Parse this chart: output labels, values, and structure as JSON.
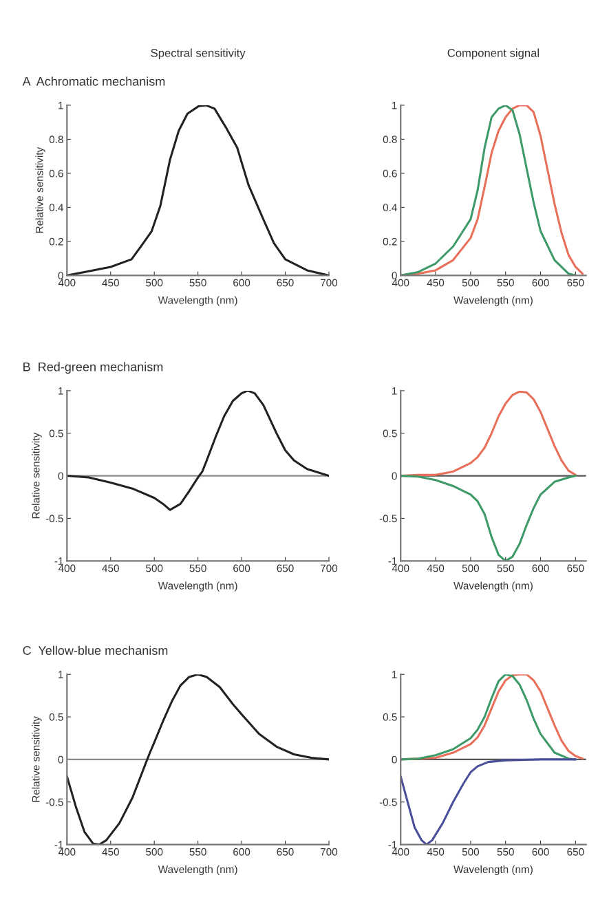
{
  "chart_data": [
    {
      "type": "line",
      "title": "A  Achromatic mechanism",
      "annotations": [
        "Spectral sensitivity"
      ],
      "xlabel": "Wavelength (nm)",
      "ylabel": "Relative sensitivity",
      "xlim": [
        400,
        700
      ],
      "xticks": [
        400,
        450,
        500,
        550,
        600,
        650,
        700
      ],
      "ylim": [
        0,
        1
      ],
      "yticks": [
        0,
        0.2,
        0.4,
        0.6,
        0.8,
        1
      ],
      "series": [
        {
          "color": "#222222",
          "x": [
            400,
            425,
            450,
            474,
            486,
            497,
            507,
            518,
            528,
            538,
            551,
            559,
            569,
            582,
            595,
            608,
            624,
            637,
            650,
            675,
            700
          ],
          "values": [
            0,
            0.025,
            0.05,
            0.095,
            0.18,
            0.26,
            0.41,
            0.68,
            0.85,
            0.95,
            0.995,
            1.0,
            0.98,
            0.87,
            0.75,
            0.53,
            0.34,
            0.19,
            0.095,
            0.03,
            0
          ]
        }
      ]
    },
    {
      "type": "line",
      "annotations": [
        "Component signal"
      ],
      "xlabel": "Wavelength (nm)",
      "xlim": [
        400,
        665
      ],
      "xticks": [
        400,
        450,
        500,
        550,
        600,
        650
      ],
      "ylim": [
        0,
        1
      ],
      "yticks": [
        0,
        0.2,
        0.4,
        0.6,
        0.8,
        1
      ],
      "series": [
        {
          "color": "#e8705a",
          "x": [
            400,
            425,
            450,
            475,
            500,
            510,
            520,
            530,
            540,
            550,
            560,
            570,
            580,
            590,
            600,
            610,
            620,
            630,
            640,
            650,
            660
          ],
          "values": [
            0,
            0.01,
            0.03,
            0.09,
            0.22,
            0.33,
            0.52,
            0.72,
            0.85,
            0.93,
            0.98,
            1.0,
            1.0,
            0.96,
            0.82,
            0.62,
            0.42,
            0.25,
            0.12,
            0.05,
            0.01
          ]
        },
        {
          "color": "#3f9a6a",
          "x": [
            400,
            425,
            450,
            475,
            500,
            510,
            520,
            530,
            540,
            550,
            560,
            570,
            580,
            590,
            600,
            620,
            640,
            650
          ],
          "values": [
            0,
            0.02,
            0.07,
            0.17,
            0.33,
            0.5,
            0.75,
            0.93,
            0.98,
            1.0,
            0.97,
            0.83,
            0.63,
            0.43,
            0.26,
            0.09,
            0.01,
            0
          ]
        }
      ]
    },
    {
      "type": "line",
      "title": "B  Red-green mechanism",
      "xlabel": "Wavelength (nm)",
      "ylabel": "Relative sensitivity",
      "xlim": [
        400,
        700
      ],
      "xticks": [
        400,
        450,
        500,
        550,
        600,
        650,
        700
      ],
      "ylim": [
        -1,
        1
      ],
      "yticks": [
        -1,
        -0.5,
        0,
        0.5,
        1
      ],
      "ref_lines": [
        {
          "axis": "y",
          "value": 0,
          "color": "#8a8a8a"
        }
      ],
      "series": [
        {
          "color": "#222222",
          "x": [
            400,
            425,
            450,
            475,
            500,
            510,
            518,
            530,
            540,
            550,
            555,
            560,
            570,
            580,
            590,
            600,
            607,
            615,
            625,
            640,
            650,
            660,
            675,
            700
          ],
          "values": [
            0,
            -0.02,
            -0.08,
            -0.15,
            -0.26,
            -0.33,
            -0.4,
            -0.33,
            -0.18,
            -0.02,
            0.05,
            0.18,
            0.45,
            0.7,
            0.88,
            0.97,
            1.0,
            0.97,
            0.83,
            0.5,
            0.3,
            0.18,
            0.08,
            0
          ]
        }
      ]
    },
    {
      "type": "line",
      "xlabel": "Wavelength (nm)",
      "xlim": [
        400,
        665
      ],
      "xticks": [
        400,
        450,
        500,
        550,
        600,
        650
      ],
      "ylim": [
        -1,
        1
      ],
      "yticks": [
        -1,
        -0.5,
        0,
        0.5,
        1
      ],
      "ref_lines": [
        {
          "axis": "y",
          "value": 0,
          "color": "#555555"
        }
      ],
      "series": [
        {
          "color": "#e8705a",
          "x": [
            400,
            425,
            450,
            475,
            500,
            510,
            520,
            530,
            540,
            550,
            560,
            570,
            580,
            590,
            600,
            610,
            620,
            630,
            640,
            650
          ],
          "values": [
            0,
            0.01,
            0.01,
            0.05,
            0.15,
            0.22,
            0.33,
            0.5,
            0.7,
            0.85,
            0.95,
            0.99,
            0.98,
            0.9,
            0.75,
            0.55,
            0.35,
            0.18,
            0.06,
            0.01
          ]
        },
        {
          "color": "#3f9a6a",
          "x": [
            400,
            425,
            450,
            475,
            500,
            510,
            520,
            530,
            540,
            550,
            560,
            570,
            580,
            590,
            600,
            620,
            640,
            650
          ],
          "values": [
            0,
            -0.01,
            -0.05,
            -0.12,
            -0.22,
            -0.3,
            -0.45,
            -0.72,
            -0.93,
            -1.0,
            -0.95,
            -0.8,
            -0.58,
            -0.38,
            -0.22,
            -0.07,
            -0.02,
            0
          ]
        }
      ]
    },
    {
      "type": "line",
      "title": "C  Yellow-blue mechanism",
      "xlabel": "Wavelength (nm)",
      "ylabel": "Relative sensitivity",
      "xlim": [
        400,
        700
      ],
      "xticks": [
        400,
        450,
        500,
        550,
        600,
        650,
        700
      ],
      "ylim": [
        -1,
        1
      ],
      "yticks": [
        -1,
        -0.5,
        0,
        0.5,
        1
      ],
      "ref_lines": [
        {
          "axis": "y",
          "value": 0,
          "color": "#8a8a8a"
        }
      ],
      "series": [
        {
          "color": "#222222",
          "x": [
            400,
            410,
            420,
            430,
            437,
            445,
            460,
            475,
            490,
            495,
            500,
            510,
            520,
            530,
            540,
            550,
            560,
            575,
            590,
            600,
            620,
            640,
            660,
            680,
            700
          ],
          "values": [
            -0.2,
            -0.55,
            -0.85,
            -0.99,
            -1.0,
            -0.95,
            -0.75,
            -0.45,
            -0.05,
            0.08,
            0.2,
            0.45,
            0.68,
            0.87,
            0.97,
            1.0,
            0.97,
            0.85,
            0.65,
            0.53,
            0.3,
            0.15,
            0.06,
            0.02,
            0
          ]
        }
      ]
    },
    {
      "type": "line",
      "xlabel": "Wavelength (nm)",
      "xlim": [
        400,
        665
      ],
      "xticks": [
        400,
        450,
        500,
        550,
        600,
        650
      ],
      "ylim": [
        -1,
        1
      ],
      "yticks": [
        -1,
        -0.5,
        0,
        0.5,
        1
      ],
      "ref_lines": [
        {
          "axis": "y",
          "value": 0,
          "color": "#555555"
        }
      ],
      "series": [
        {
          "color": "#e8705a",
          "x": [
            400,
            425,
            450,
            475,
            500,
            510,
            520,
            530,
            540,
            550,
            560,
            570,
            580,
            590,
            600,
            610,
            620,
            630,
            640,
            650,
            660
          ],
          "values": [
            0,
            0.01,
            0.02,
            0.08,
            0.18,
            0.26,
            0.4,
            0.6,
            0.8,
            0.93,
            0.99,
            1.0,
            1.0,
            0.93,
            0.8,
            0.6,
            0.4,
            0.22,
            0.1,
            0.04,
            0.01
          ]
        },
        {
          "color": "#3f9a6a",
          "x": [
            400,
            425,
            450,
            475,
            500,
            510,
            520,
            530,
            540,
            550,
            560,
            570,
            580,
            590,
            600,
            620,
            640,
            650
          ],
          "values": [
            0,
            0.01,
            0.05,
            0.12,
            0.25,
            0.35,
            0.5,
            0.72,
            0.92,
            1.0,
            0.98,
            0.88,
            0.7,
            0.48,
            0.3,
            0.08,
            0.01,
            0
          ]
        },
        {
          "color": "#4a4f9a",
          "x": [
            400,
            410,
            420,
            430,
            437,
            445,
            460,
            475,
            490,
            500,
            510,
            525,
            550,
            600,
            650
          ],
          "values": [
            -0.2,
            -0.5,
            -0.8,
            -0.95,
            -1.0,
            -0.95,
            -0.75,
            -0.5,
            -0.28,
            -0.15,
            -0.08,
            -0.03,
            -0.01,
            0,
            0
          ]
        }
      ]
    }
  ]
}
